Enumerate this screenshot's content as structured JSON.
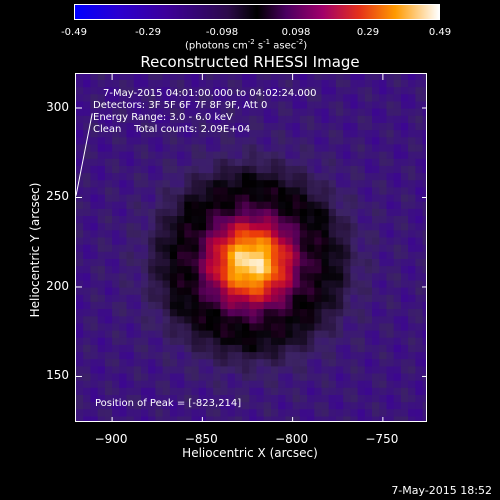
{
  "colorbar": {
    "ticks": [
      "-0.49",
      "-0.29",
      "-0.098",
      "0.098",
      "0.29",
      "0.49"
    ],
    "units_prefix": "(photons cm",
    "units_exp1": "-2",
    "units_mid1": " s",
    "units_exp2": "-1",
    "units_mid2": " asec",
    "units_exp3": "-2",
    "units_suffix": ")"
  },
  "info": {
    "time_range": "7-May-2015 04:01:00.000 to 04:02:24.000",
    "detectors": "Detectors: 3F 5F 6F 7F 8F 9F, Att 0",
    "energy": "Energy Range: 3.0 - 6.0 keV",
    "clean": "Clean    Total counts: 2.09E+04",
    "peak": "Position of Peak = [-823,214]"
  },
  "footer_date": "7-May-2015 18:52",
  "chart_data": {
    "type": "heatmap",
    "title": "Reconstructed RHESSI Image",
    "xlabel": "Heliocentric X (arcsec)",
    "ylabel": "Heliocentric Y (arcsec)",
    "xlim": [
      -920,
      -725
    ],
    "ylim": [
      124,
      319
    ],
    "x_ticks": [
      -900,
      -850,
      -800,
      -750
    ],
    "y_ticks": [
      150,
      200,
      250,
      300
    ],
    "value_range": [
      -0.49,
      0.49
    ],
    "colormap": "heat",
    "peak_position": [
      -823,
      214
    ],
    "peak_value": 0.49,
    "source_sigma_arcsec": 19,
    "background_value": -0.19,
    "limb_line": [
      [
        -920,
        251
      ],
      [
        -911,
        297
      ]
    ],
    "grid": false
  }
}
